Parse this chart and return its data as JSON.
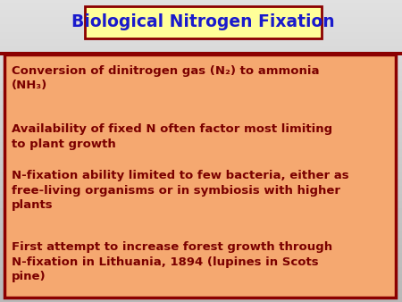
{
  "title": "Biological Nitrogen Fixation",
  "title_color": "#1a1aCC",
  "title_bg": "#FFFF99",
  "title_border": "#8B0000",
  "title_fontsize": 13.5,
  "box_bg": "#F5A870",
  "box_border": "#8B0000",
  "text_color": "#7B0000",
  "text_fontsize": 9.5,
  "bullet1": "Conversion of dinitrogen gas (N₂) to ammonia\n(NH₃)",
  "bullet2": "Availability of fixed N often factor most limiting\nto plant growth",
  "bullet3": "N-fixation ability limited to few bacteria, either as\nfree-living organisms or in symbiosis with higher\nplants",
  "bullet4": "First attempt to increase forest growth through\nN-fixation in Lithuania, 1894 (lupines in Scots\npine)"
}
